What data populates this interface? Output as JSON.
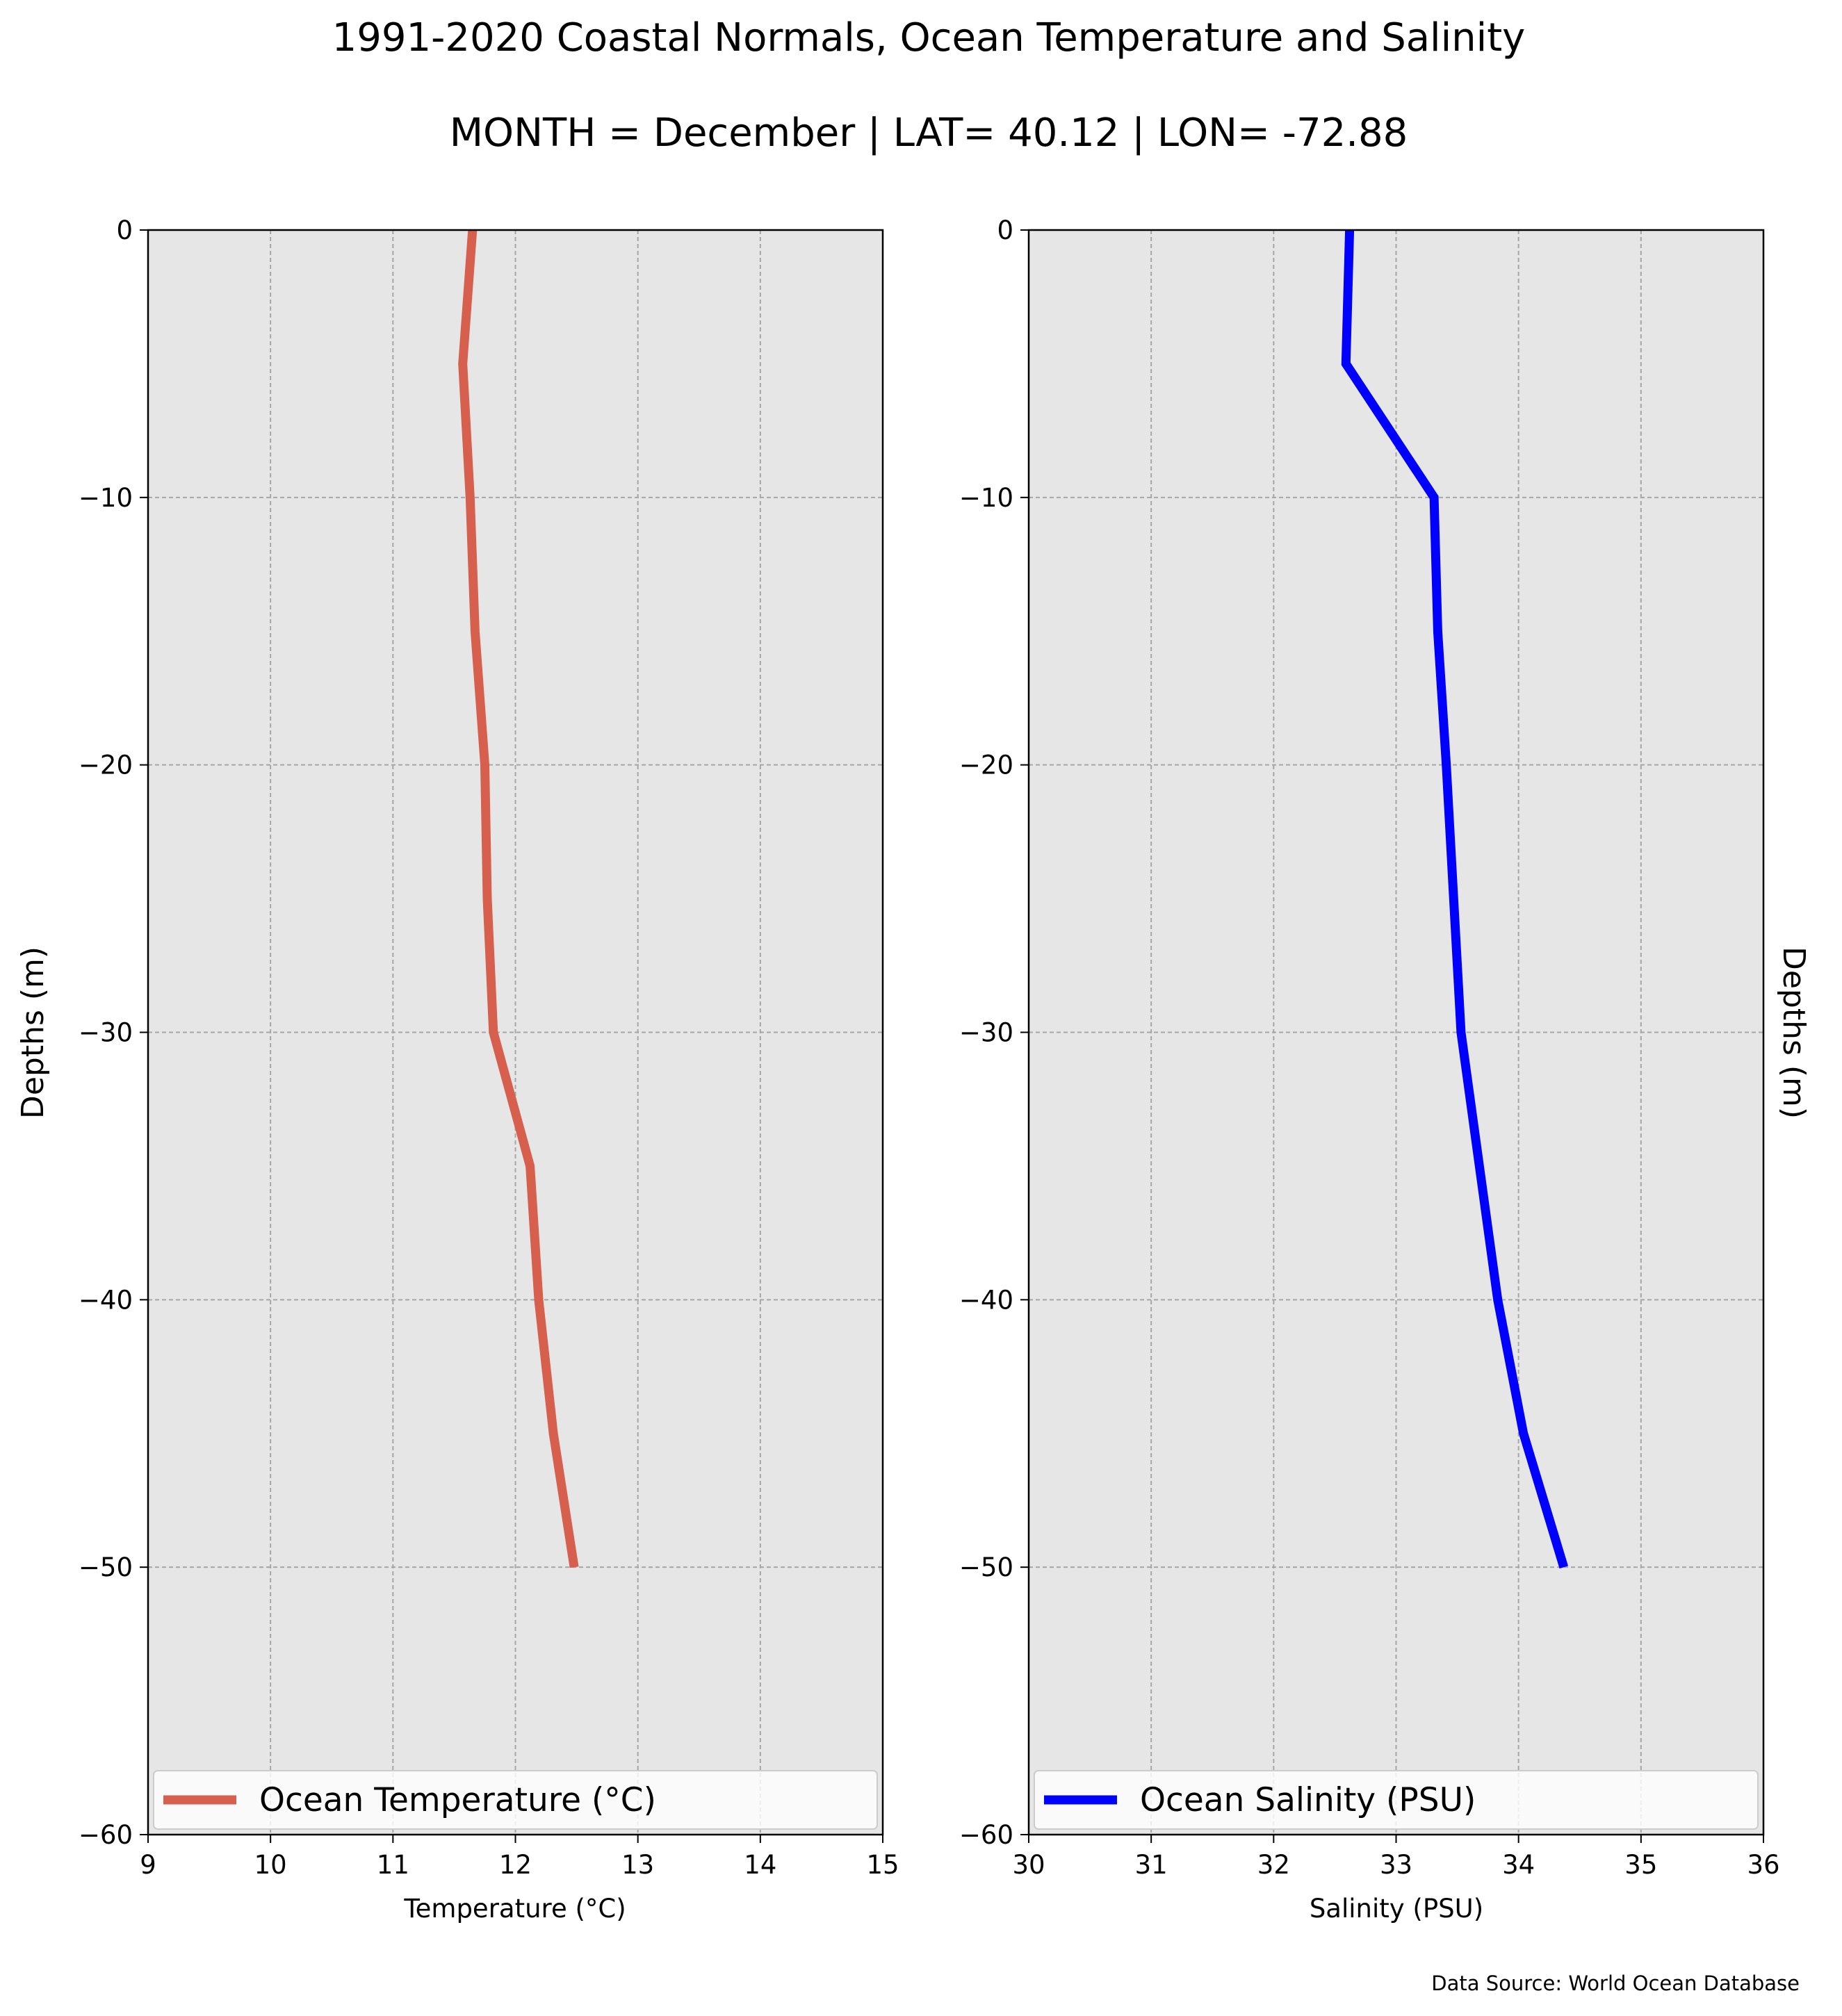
{
  "title": "1991-2020 Coastal Normals, Ocean Temperature and Salinity",
  "subtitle": "MONTH = December | LAT= 40.12 | LON= -72.88",
  "source": "Data Source: World Ocean Database",
  "colors": {
    "temperature": "#d65f4d",
    "salinity": "#0000ff",
    "panel_bg": "#e6e6e6",
    "grid": "#a6a6a6"
  },
  "chart_data": [
    {
      "type": "line",
      "panel": "temperature",
      "xlabel": "Temperature ($^\\circ$C)",
      "xlabel_display": "Temperature (°C)",
      "ylabel": "Depths (m)",
      "xlim": [
        9,
        15
      ],
      "ylim": [
        -60,
        0
      ],
      "xticks": [
        "9",
        "10",
        "11",
        "12",
        "13",
        "14",
        "15"
      ],
      "yticks": [
        "0",
        "−10",
        "−20",
        "−30",
        "−40",
        "−50",
        "−60"
      ],
      "grid": true,
      "legend_position": "bottom",
      "series": [
        {
          "name": "Ocean Temperature (°C)",
          "x": [
            11.65,
            11.57,
            11.63,
            11.67,
            11.75,
            11.77,
            11.82,
            11.97,
            12.12,
            12.19,
            12.31,
            12.48
          ],
          "y": [
            0,
            -5,
            -10,
            -15,
            -20,
            -25,
            -30,
            -32.5,
            -35,
            -40,
            -45,
            -50
          ]
        }
      ]
    },
    {
      "type": "line",
      "panel": "salinity",
      "xlabel": "Salinity (PSU)",
      "ylabel": "Depths (m)",
      "xlim": [
        30,
        36
      ],
      "ylim": [
        -60,
        0
      ],
      "xticks": [
        "30",
        "31",
        "32",
        "33",
        "34",
        "35",
        "36"
      ],
      "yticks": [
        "0",
        "−10",
        "−20",
        "−30",
        "−40",
        "−50",
        "−60"
      ],
      "grid": true,
      "legend_position": "bottom",
      "series": [
        {
          "name": "Ocean Salinity (PSU)",
          "x": [
            32.62,
            32.59,
            33.31,
            33.34,
            33.41,
            33.47,
            33.53,
            33.68,
            33.83,
            34.04,
            34.37
          ],
          "y": [
            0,
            -5,
            -10,
            -15,
            -20,
            -25,
            -30,
            -35,
            -40,
            -45,
            -50
          ]
        }
      ]
    }
  ]
}
